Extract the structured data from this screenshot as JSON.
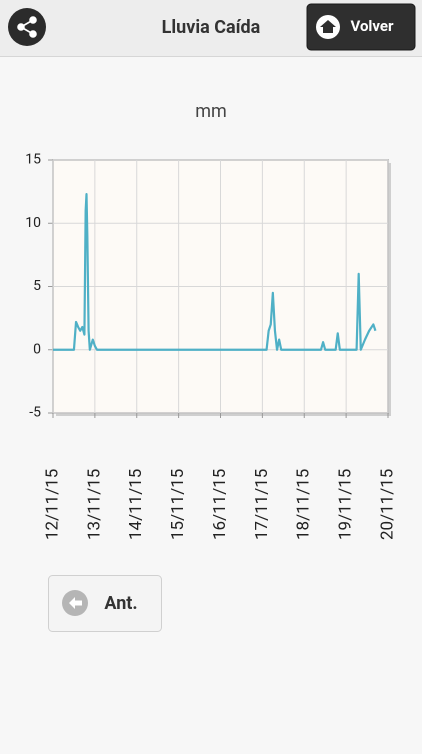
{
  "header": {
    "title": "Lluvia Caída",
    "back_button": "Volver"
  },
  "chart_data": {
    "type": "line",
    "title": "mm",
    "x": [
      0,
      0.5,
      0.55,
      0.6,
      0.65,
      0.7,
      0.75,
      0.78,
      0.8,
      0.82,
      0.85,
      0.88,
      0.95,
      1.0,
      1.05,
      5.1,
      5.15,
      5.2,
      5.25,
      5.3,
      5.35,
      5.4,
      5.45,
      5.5,
      5.55,
      6.4,
      6.45,
      6.5,
      6.75,
      6.8,
      6.85,
      7.25,
      7.3,
      7.35,
      7.45,
      7.55,
      7.65,
      7.7
    ],
    "series": [
      {
        "name": "mm",
        "color": "#4fb0c6",
        "values": [
          0,
          0,
          2.2,
          1.8,
          1.5,
          1.8,
          1.2,
          11.0,
          12.3,
          9.0,
          1.5,
          0,
          0.8,
          0.3,
          0,
          0,
          1.5,
          2.0,
          4.5,
          1.5,
          0,
          0.8,
          0,
          0,
          0,
          0,
          0.6,
          0,
          0,
          1.3,
          0,
          0,
          6.0,
          0,
          0.8,
          1.5,
          2.0,
          1.5
        ]
      }
    ],
    "xlim": [
      0,
      8
    ],
    "xticks": [
      {
        "value": 0,
        "label": "12/11/15"
      },
      {
        "value": 1,
        "label": "13/11/15"
      },
      {
        "value": 2,
        "label": "14/11/15"
      },
      {
        "value": 3,
        "label": "15/11/15"
      },
      {
        "value": 4,
        "label": "16/11/15"
      },
      {
        "value": 5,
        "label": "17/11/15"
      },
      {
        "value": 6,
        "label": "18/11/15"
      },
      {
        "value": 7,
        "label": "19/11/15"
      },
      {
        "value": 8,
        "label": "20/11/15"
      }
    ],
    "ylim": [
      -5,
      15
    ],
    "yticks": [
      -5,
      0,
      5,
      10,
      15
    ],
    "grid": true
  },
  "footer": {
    "prev_button": "Ant."
  }
}
